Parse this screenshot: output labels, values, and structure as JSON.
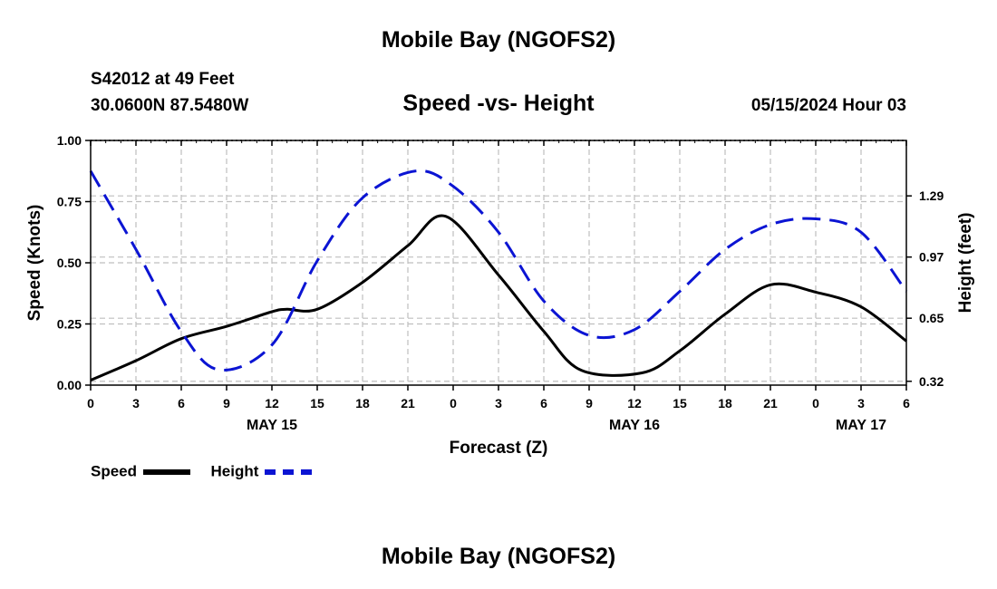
{
  "header": {
    "title": "Mobile Bay (NGOFS2)",
    "station": "S42012 at 49 Feet",
    "coords": "30.0600N  87.5480W",
    "subtitle": "Speed -vs- Height",
    "timestamp": "05/15/2024 Hour 03"
  },
  "footer": {
    "title": "Mobile Bay (NGOFS2)"
  },
  "legend": {
    "speed_label": "Speed",
    "height_label": "Height"
  },
  "colors": {
    "speed": "#000000",
    "height": "#0b14d3",
    "grid": "#bfbfbf"
  },
  "chart_data": {
    "type": "line",
    "title": "Speed -vs- Height",
    "xlabel": "Forecast (Z)",
    "ylabel": "Speed (Knots)",
    "y2label": "Height (feet)",
    "x_hours": [
      0,
      54
    ],
    "x_ticks": [
      0,
      3,
      6,
      9,
      12,
      15,
      18,
      21,
      24,
      27,
      30,
      33,
      36,
      39,
      42,
      45,
      48,
      51,
      54
    ],
    "x_tick_labels": [
      "0",
      "3",
      "6",
      "9",
      "12",
      "15",
      "18",
      "21",
      "0",
      "3",
      "6",
      "9",
      "12",
      "15",
      "18",
      "21",
      "0",
      "3",
      "6"
    ],
    "date_labels": [
      {
        "hour": 12,
        "text": "MAY 15"
      },
      {
        "hour": 36,
        "text": "MAY 16"
      },
      {
        "hour": 51,
        "text": "MAY 17"
      }
    ],
    "ylim": [
      0,
      1.0
    ],
    "y_ticks": [
      0,
      0.25,
      0.5,
      0.75,
      1.0
    ],
    "y_tick_labels": [
      "0.00",
      "0.25",
      "0.50",
      "0.75",
      "1.00"
    ],
    "y2lim": [
      0.3,
      1.58
    ],
    "y2_ticks": [
      0.32,
      0.65,
      0.97,
      1.29
    ],
    "y2_tick_labels": [
      "0.32",
      "0.65",
      "0.97",
      "1.29"
    ],
    "series": [
      {
        "name": "Speed",
        "axis": "left",
        "style": "solid",
        "x": [
          0,
          3,
          6,
          9,
          12,
          13,
          15,
          18,
          21,
          23.5,
          27,
          30,
          32.5,
          36.5,
          39,
          42,
          45,
          48,
          51,
          54
        ],
        "values": [
          0.02,
          0.1,
          0.19,
          0.24,
          0.3,
          0.31,
          0.31,
          0.42,
          0.57,
          0.69,
          0.45,
          0.22,
          0.06,
          0.05,
          0.14,
          0.29,
          0.41,
          0.38,
          0.32,
          0.18
        ]
      },
      {
        "name": "Height",
        "axis": "right",
        "style": "dashed",
        "x": [
          0,
          3,
          6,
          8.5,
          12,
          15,
          18,
          21.5,
          24,
          27,
          30,
          33,
          36,
          39,
          42,
          45,
          48,
          51,
          54
        ],
        "values": [
          1.42,
          1.01,
          0.58,
          0.38,
          0.51,
          0.95,
          1.28,
          1.42,
          1.34,
          1.1,
          0.74,
          0.56,
          0.59,
          0.79,
          1.01,
          1.14,
          1.17,
          1.1,
          0.79
        ]
      }
    ]
  }
}
